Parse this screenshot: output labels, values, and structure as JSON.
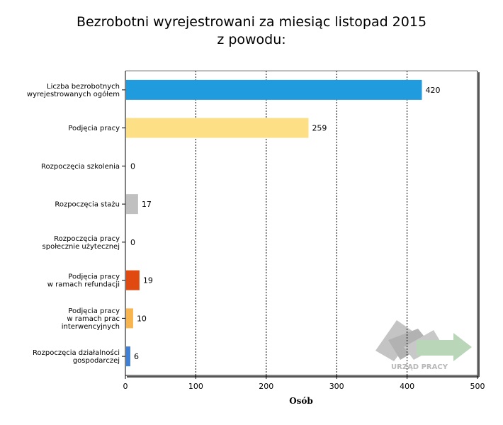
{
  "chart_data": {
    "type": "bar",
    "orientation": "horizontal",
    "title_line1": "Bezrobotni wyrejestrowani za miesiąc listopad 2015",
    "title_line2": "z powodu:",
    "xlabel": "Osób",
    "xlim": [
      0,
      500
    ],
    "xticks": [
      0,
      100,
      200,
      300,
      400,
      500
    ],
    "grid": "vertical-dotted",
    "categories": [
      [
        "Liczba bezrobotnych",
        "wyrejestrowanych ogółem"
      ],
      [
        "Podjęcia pracy"
      ],
      [
        "Rozpoczęcia szkolenia"
      ],
      [
        "Rozpoczęcia stażu"
      ],
      [
        "Rozpoczęcia pracy",
        "społecznie użytecznej"
      ],
      [
        "Podjęcia pracy",
        "w ramach refundacji"
      ],
      [
        "Podjęcia pracy",
        "w ramach prac",
        "interwencyjnych"
      ],
      [
        "Rozpoczęcia działalności",
        "gospodarczej"
      ]
    ],
    "values": [
      420,
      259,
      0,
      17,
      0,
      19,
      10,
      6
    ],
    "colors": [
      "#1f9bde",
      "#fde085",
      "#9e9e9e",
      "#c0c0c0",
      "#9e9e9e",
      "#e04a10",
      "#f9b54d",
      "#3f7fd6"
    ]
  },
  "watermark": {
    "text": "URZĄD PRACY",
    "icon": "arrow-logo-icon"
  }
}
